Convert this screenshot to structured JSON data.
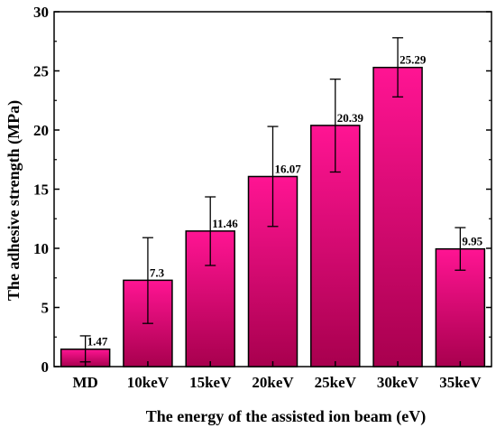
{
  "chart_data": {
    "type": "bar",
    "categories": [
      "MD",
      "10keV",
      "15keV",
      "20keV",
      "25keV",
      "30keV",
      "35keV"
    ],
    "values": [
      1.47,
      7.3,
      11.46,
      16.07,
      20.39,
      25.29,
      9.95
    ],
    "error_low": [
      0.4,
      3.65,
      8.55,
      11.85,
      16.45,
      22.8,
      8.15
    ],
    "error_high": [
      2.6,
      10.9,
      14.35,
      20.3,
      24.3,
      27.8,
      11.75
    ],
    "data_labels": [
      "1.47",
      "7.3",
      "11.46",
      "16.07",
      "20.39",
      "25.29",
      "9.95"
    ],
    "xlabel": "The energy of the assisted ion beam (eV)",
    "ylabel": "The adhesive strength (MPa)",
    "ylim": [
      0,
      30
    ],
    "yticks": [
      "0",
      "5",
      "10",
      "15",
      "20",
      "25",
      "30"
    ],
    "grid": false,
    "legend": "none",
    "colors": {
      "bar_top": "#ff1493",
      "bar_bottom": "#a8004e",
      "edge": "#000000"
    }
  }
}
